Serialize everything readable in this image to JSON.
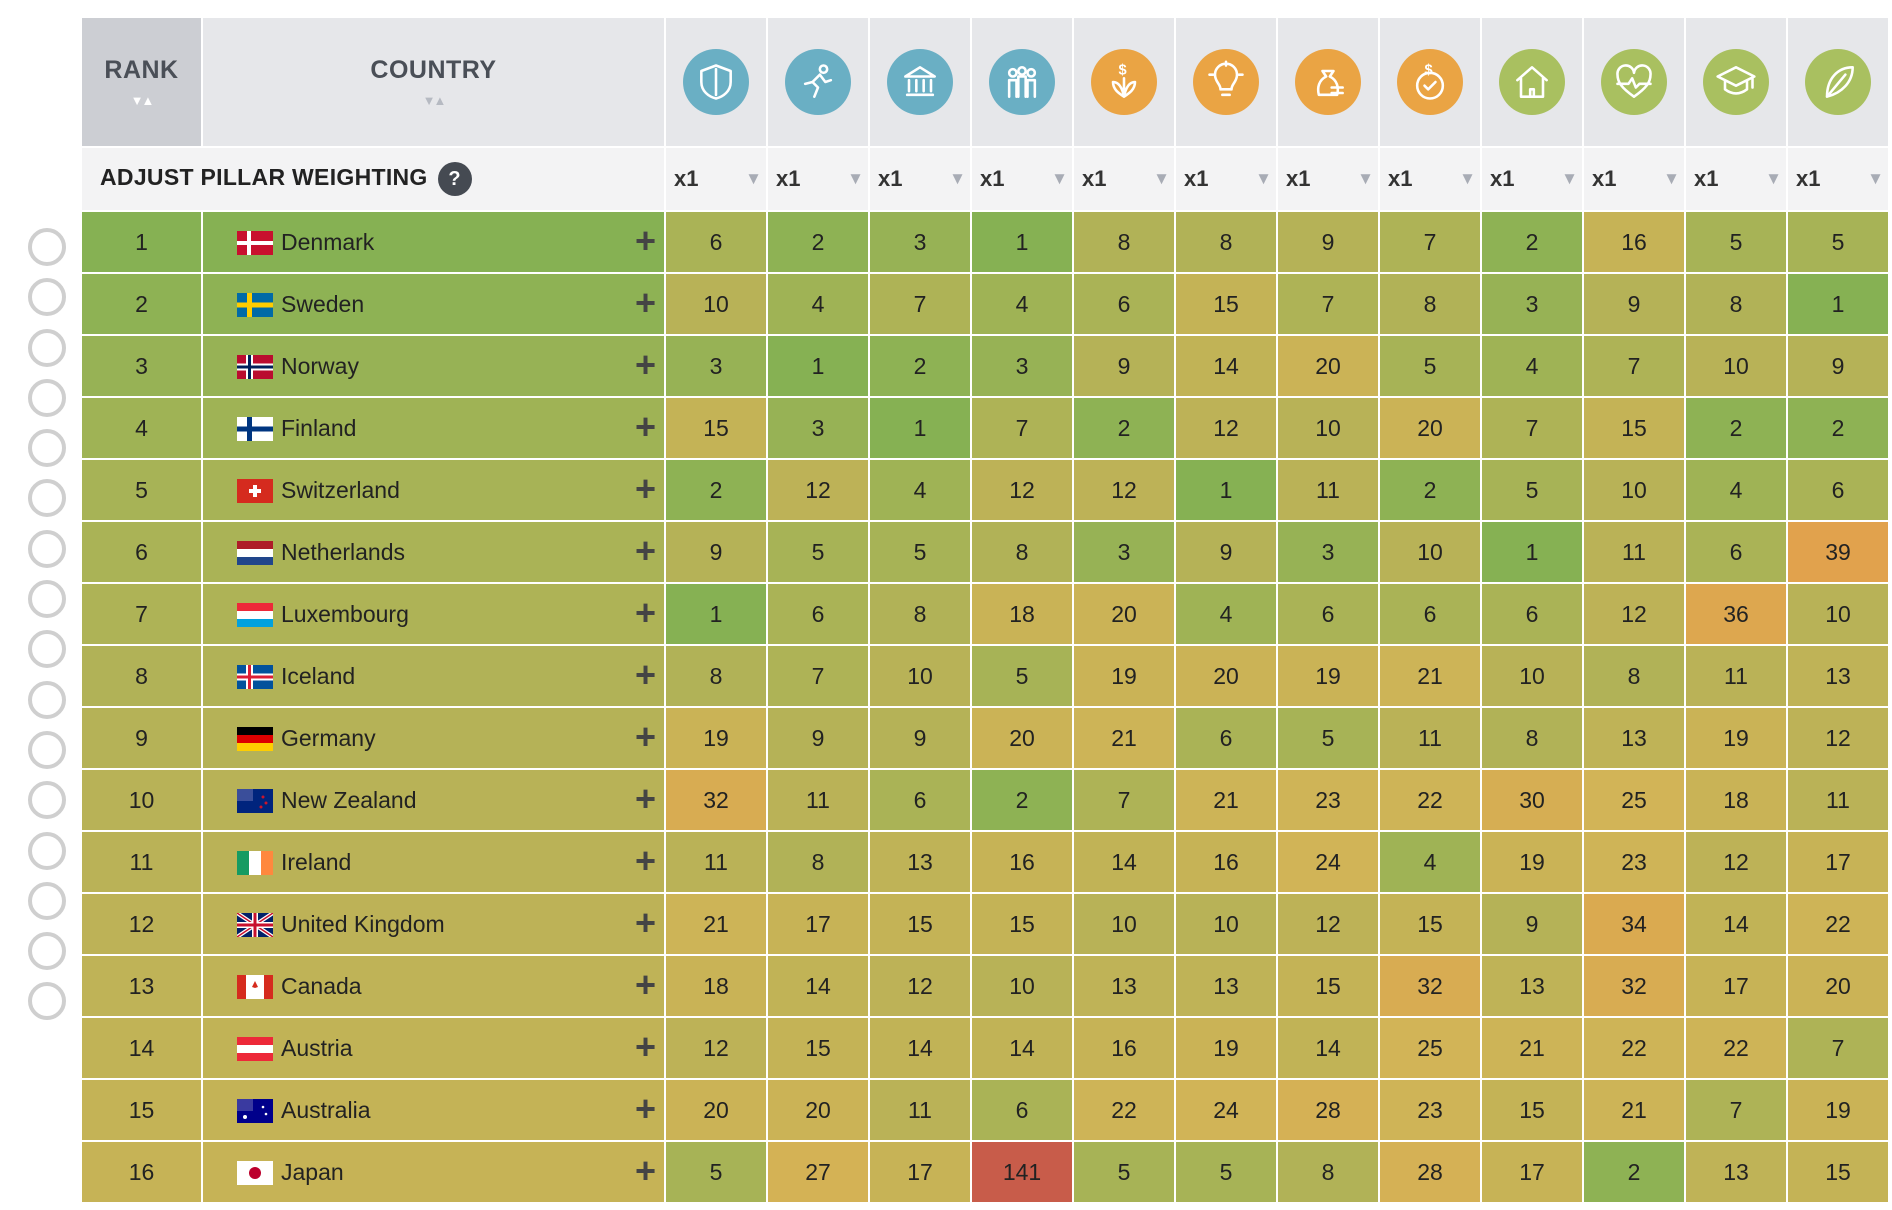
{
  "header": {
    "rank": "RANK",
    "country": "COUNTRY",
    "adjust_label": "ADJUST PILLAR WEIGHTING",
    "help": "?"
  },
  "pillars": [
    {
      "icon": "shield-icon",
      "color": "#6aafc4",
      "weight": "x1"
    },
    {
      "icon": "runner-icon",
      "color": "#6aafc4",
      "weight": "x1"
    },
    {
      "icon": "institution-icon",
      "color": "#6aafc4",
      "weight": "x1"
    },
    {
      "icon": "people-icon",
      "color": "#6aafc4",
      "weight": "x1"
    },
    {
      "icon": "money-plant-icon",
      "color": "#eaa444",
      "weight": "x1"
    },
    {
      "icon": "lightbulb-icon",
      "color": "#eaa444",
      "weight": "x1"
    },
    {
      "icon": "money-bag-icon",
      "color": "#eaa444",
      "weight": "x1"
    },
    {
      "icon": "dollar-check-icon",
      "color": "#eaa444",
      "weight": "x1"
    },
    {
      "icon": "house-icon",
      "color": "#a9c060",
      "weight": "x1"
    },
    {
      "icon": "heart-icon",
      "color": "#a9c060",
      "weight": "x1"
    },
    {
      "icon": "graduation-cap-icon",
      "color": "#a9c060",
      "weight": "x1"
    },
    {
      "icon": "leaf-icon",
      "color": "#a9c060",
      "weight": "x1"
    }
  ],
  "rows": [
    {
      "rank": "1",
      "country": "Denmark",
      "flag": "dk",
      "values": [
        6,
        2,
        3,
        1,
        8,
        8,
        9,
        7,
        2,
        16,
        5,
        5
      ]
    },
    {
      "rank": "2",
      "country": "Sweden",
      "flag": "se",
      "values": [
        10,
        4,
        7,
        4,
        6,
        15,
        7,
        8,
        3,
        9,
        8,
        1
      ]
    },
    {
      "rank": "3",
      "country": "Norway",
      "flag": "no",
      "values": [
        3,
        1,
        2,
        3,
        9,
        14,
        20,
        5,
        4,
        7,
        10,
        9
      ]
    },
    {
      "rank": "4",
      "country": "Finland",
      "flag": "fi",
      "values": [
        15,
        3,
        1,
        7,
        2,
        12,
        10,
        20,
        7,
        15,
        2,
        2
      ]
    },
    {
      "rank": "5",
      "country": "Switzerland",
      "flag": "ch",
      "values": [
        2,
        12,
        4,
        12,
        12,
        1,
        11,
        2,
        5,
        10,
        4,
        6
      ]
    },
    {
      "rank": "6",
      "country": "Netherlands",
      "flag": "nl",
      "values": [
        9,
        5,
        5,
        8,
        3,
        9,
        3,
        10,
        1,
        11,
        6,
        39
      ]
    },
    {
      "rank": "7",
      "country": "Luxembourg",
      "flag": "lu",
      "values": [
        1,
        6,
        8,
        18,
        20,
        4,
        6,
        6,
        6,
        12,
        36,
        10
      ]
    },
    {
      "rank": "8",
      "country": "Iceland",
      "flag": "is",
      "values": [
        8,
        7,
        10,
        5,
        19,
        20,
        19,
        21,
        10,
        8,
        11,
        13
      ]
    },
    {
      "rank": "9",
      "country": "Germany",
      "flag": "de",
      "values": [
        19,
        9,
        9,
        20,
        21,
        6,
        5,
        11,
        8,
        13,
        19,
        12
      ]
    },
    {
      "rank": "10",
      "country": "New Zealand",
      "flag": "nz",
      "values": [
        32,
        11,
        6,
        2,
        7,
        21,
        23,
        22,
        30,
        25,
        18,
        11
      ]
    },
    {
      "rank": "11",
      "country": "Ireland",
      "flag": "ie",
      "values": [
        11,
        8,
        13,
        16,
        14,
        16,
        24,
        4,
        19,
        23,
        12,
        17
      ]
    },
    {
      "rank": "12",
      "country": "United Kingdom",
      "flag": "gb",
      "values": [
        21,
        17,
        15,
        15,
        10,
        10,
        12,
        15,
        9,
        34,
        14,
        22
      ]
    },
    {
      "rank": "13",
      "country": "Canada",
      "flag": "ca",
      "values": [
        18,
        14,
        12,
        10,
        13,
        13,
        15,
        32,
        13,
        32,
        17,
        20
      ]
    },
    {
      "rank": "14",
      "country": "Austria",
      "flag": "at",
      "values": [
        12,
        15,
        14,
        14,
        16,
        19,
        14,
        25,
        21,
        22,
        22,
        7
      ]
    },
    {
      "rank": "15",
      "country": "Australia",
      "flag": "au",
      "values": [
        20,
        20,
        11,
        6,
        22,
        24,
        28,
        23,
        15,
        21,
        7,
        19
      ]
    },
    {
      "rank": "16",
      "country": "Japan",
      "flag": "jp",
      "values": [
        5,
        27,
        17,
        141,
        5,
        5,
        8,
        28,
        17,
        2,
        13,
        15
      ]
    }
  ]
}
